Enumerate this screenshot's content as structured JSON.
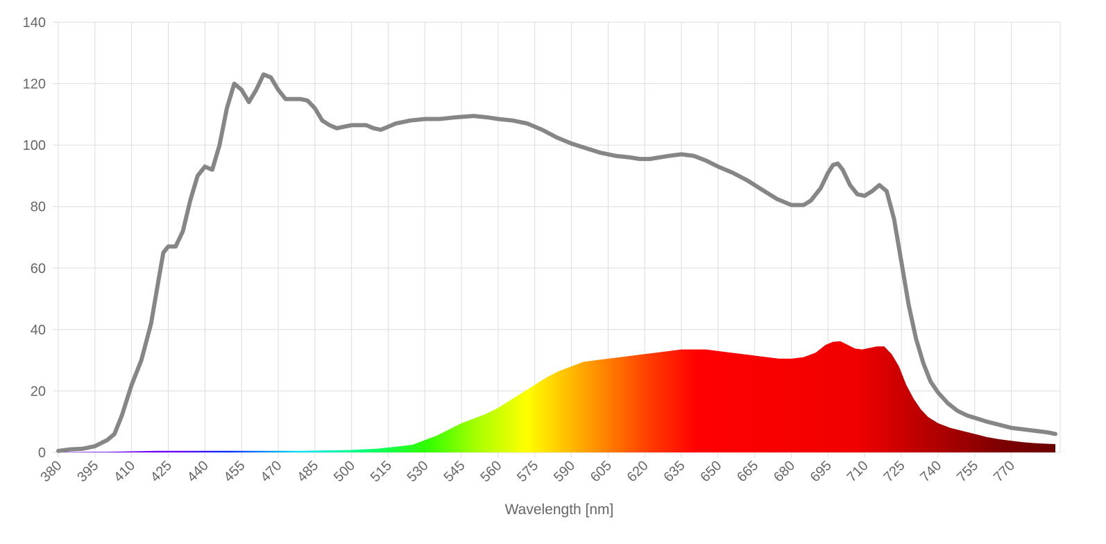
{
  "chart_data": {
    "type": "area",
    "xlabel": "Wavelength [nm]",
    "ylabel": "",
    "xlim": [
      380,
      790
    ],
    "ylim": [
      0,
      140
    ],
    "grid": true,
    "x_ticks": [
      380,
      395,
      410,
      425,
      440,
      455,
      470,
      485,
      500,
      515,
      530,
      545,
      560,
      575,
      590,
      605,
      620,
      635,
      650,
      665,
      680,
      695,
      710,
      725,
      740,
      755,
      770
    ],
    "y_ticks": [
      0,
      20,
      40,
      60,
      80,
      100,
      120,
      140
    ],
    "colors": {
      "reference_line": "#868686",
      "grid": "#dcdcdc",
      "axis_text": "#666666"
    },
    "series": [
      {
        "style": "line",
        "points": [
          [
            380,
            0.5
          ],
          [
            385,
            1
          ],
          [
            390,
            1.2
          ],
          [
            395,
            2
          ],
          [
            400,
            4
          ],
          [
            403,
            6
          ],
          [
            406,
            12
          ],
          [
            410,
            22
          ],
          [
            414,
            30
          ],
          [
            418,
            42
          ],
          [
            421,
            56
          ],
          [
            423,
            65
          ],
          [
            425,
            67
          ],
          [
            428,
            67
          ],
          [
            431,
            72
          ],
          [
            434,
            82
          ],
          [
            437,
            90
          ],
          [
            440,
            93
          ],
          [
            443,
            92
          ],
          [
            446,
            100
          ],
          [
            449,
            112
          ],
          [
            452,
            120
          ],
          [
            455,
            118
          ],
          [
            458,
            114
          ],
          [
            461,
            118
          ],
          [
            464,
            123
          ],
          [
            467,
            122
          ],
          [
            470,
            118
          ],
          [
            473,
            115
          ],
          [
            476,
            115
          ],
          [
            479,
            115
          ],
          [
            482,
            114.5
          ],
          [
            485,
            112
          ],
          [
            488,
            108
          ],
          [
            491,
            106.5
          ],
          [
            494,
            105.5
          ],
          [
            497,
            106
          ],
          [
            500,
            106.5
          ],
          [
            503,
            106.5
          ],
          [
            506,
            106.5
          ],
          [
            509,
            105.5
          ],
          [
            512,
            105
          ],
          [
            515,
            106
          ],
          [
            518,
            107
          ],
          [
            521,
            107.5
          ],
          [
            524,
            108
          ],
          [
            530,
            108.5
          ],
          [
            536,
            108.5
          ],
          [
            542,
            109
          ],
          [
            550,
            109.5
          ],
          [
            556,
            109
          ],
          [
            560,
            108.5
          ],
          [
            566,
            108
          ],
          [
            572,
            107
          ],
          [
            578,
            105
          ],
          [
            584,
            102.5
          ],
          [
            590,
            100.5
          ],
          [
            596,
            99
          ],
          [
            602,
            97.5
          ],
          [
            608,
            96.5
          ],
          [
            614,
            96
          ],
          [
            618,
            95.5
          ],
          [
            622,
            95.5
          ],
          [
            626,
            96
          ],
          [
            630,
            96.5
          ],
          [
            635,
            97
          ],
          [
            640,
            96.5
          ],
          [
            645,
            95
          ],
          [
            650,
            93
          ],
          [
            656,
            91
          ],
          [
            662,
            88.5
          ],
          [
            668,
            85.5
          ],
          [
            674,
            82.5
          ],
          [
            680,
            80.5
          ],
          [
            685,
            80.5
          ],
          [
            688,
            82
          ],
          [
            692,
            86
          ],
          [
            695,
            91
          ],
          [
            697,
            93.5
          ],
          [
            699,
            94
          ],
          [
            701,
            92
          ],
          [
            704,
            87
          ],
          [
            707,
            84
          ],
          [
            710,
            83.5
          ],
          [
            713,
            85
          ],
          [
            716,
            87
          ],
          [
            719,
            85
          ],
          [
            722,
            76
          ],
          [
            725,
            62
          ],
          [
            728,
            48
          ],
          [
            731,
            37
          ],
          [
            734,
            29
          ],
          [
            737,
            23
          ],
          [
            740,
            19.5
          ],
          [
            744,
            16
          ],
          [
            748,
            13.5
          ],
          [
            752,
            12
          ],
          [
            756,
            11
          ],
          [
            760,
            10
          ],
          [
            765,
            9
          ],
          [
            770,
            8
          ],
          [
            775,
            7.5
          ],
          [
            780,
            7
          ],
          [
            785,
            6.5
          ],
          [
            788,
            6
          ]
        ]
      },
      {
        "style": "spectrum-fill",
        "points": [
          [
            380,
            0.1
          ],
          [
            400,
            0.2
          ],
          [
            420,
            0.5
          ],
          [
            440,
            0.5
          ],
          [
            460,
            0.5
          ],
          [
            480,
            0.5
          ],
          [
            500,
            0.8
          ],
          [
            510,
            1.2
          ],
          [
            520,
            2
          ],
          [
            525,
            2.5
          ],
          [
            530,
            4
          ],
          [
            535,
            5.5
          ],
          [
            540,
            7.5
          ],
          [
            545,
            9.5
          ],
          [
            550,
            11
          ],
          [
            555,
            12.5
          ],
          [
            560,
            14.5
          ],
          [
            565,
            17
          ],
          [
            570,
            19.5
          ],
          [
            575,
            22
          ],
          [
            580,
            24.5
          ],
          [
            585,
            26.5
          ],
          [
            590,
            28
          ],
          [
            595,
            29.5
          ],
          [
            600,
            30
          ],
          [
            605,
            30.5
          ],
          [
            610,
            31
          ],
          [
            615,
            31.5
          ],
          [
            620,
            32
          ],
          [
            625,
            32.5
          ],
          [
            630,
            33
          ],
          [
            635,
            33.5
          ],
          [
            640,
            33.5
          ],
          [
            645,
            33.5
          ],
          [
            650,
            33
          ],
          [
            655,
            32.5
          ],
          [
            660,
            32
          ],
          [
            665,
            31.5
          ],
          [
            670,
            31
          ],
          [
            675,
            30.5
          ],
          [
            680,
            30.5
          ],
          [
            685,
            31
          ],
          [
            690,
            32.5
          ],
          [
            694,
            35
          ],
          [
            697,
            36
          ],
          [
            700,
            36.2
          ],
          [
            703,
            35
          ],
          [
            706,
            33.8
          ],
          [
            709,
            33.5
          ],
          [
            712,
            34
          ],
          [
            715,
            34.5
          ],
          [
            718,
            34.5
          ],
          [
            721,
            32
          ],
          [
            724,
            28
          ],
          [
            727,
            22
          ],
          [
            730,
            17.5
          ],
          [
            733,
            14
          ],
          [
            736,
            11.5
          ],
          [
            740,
            9.5
          ],
          [
            745,
            8
          ],
          [
            750,
            7
          ],
          [
            755,
            6
          ],
          [
            760,
            5
          ],
          [
            765,
            4.3
          ],
          [
            770,
            3.8
          ],
          [
            775,
            3.3
          ],
          [
            780,
            3
          ],
          [
            785,
            2.8
          ],
          [
            788,
            2.7
          ]
        ]
      }
    ]
  }
}
